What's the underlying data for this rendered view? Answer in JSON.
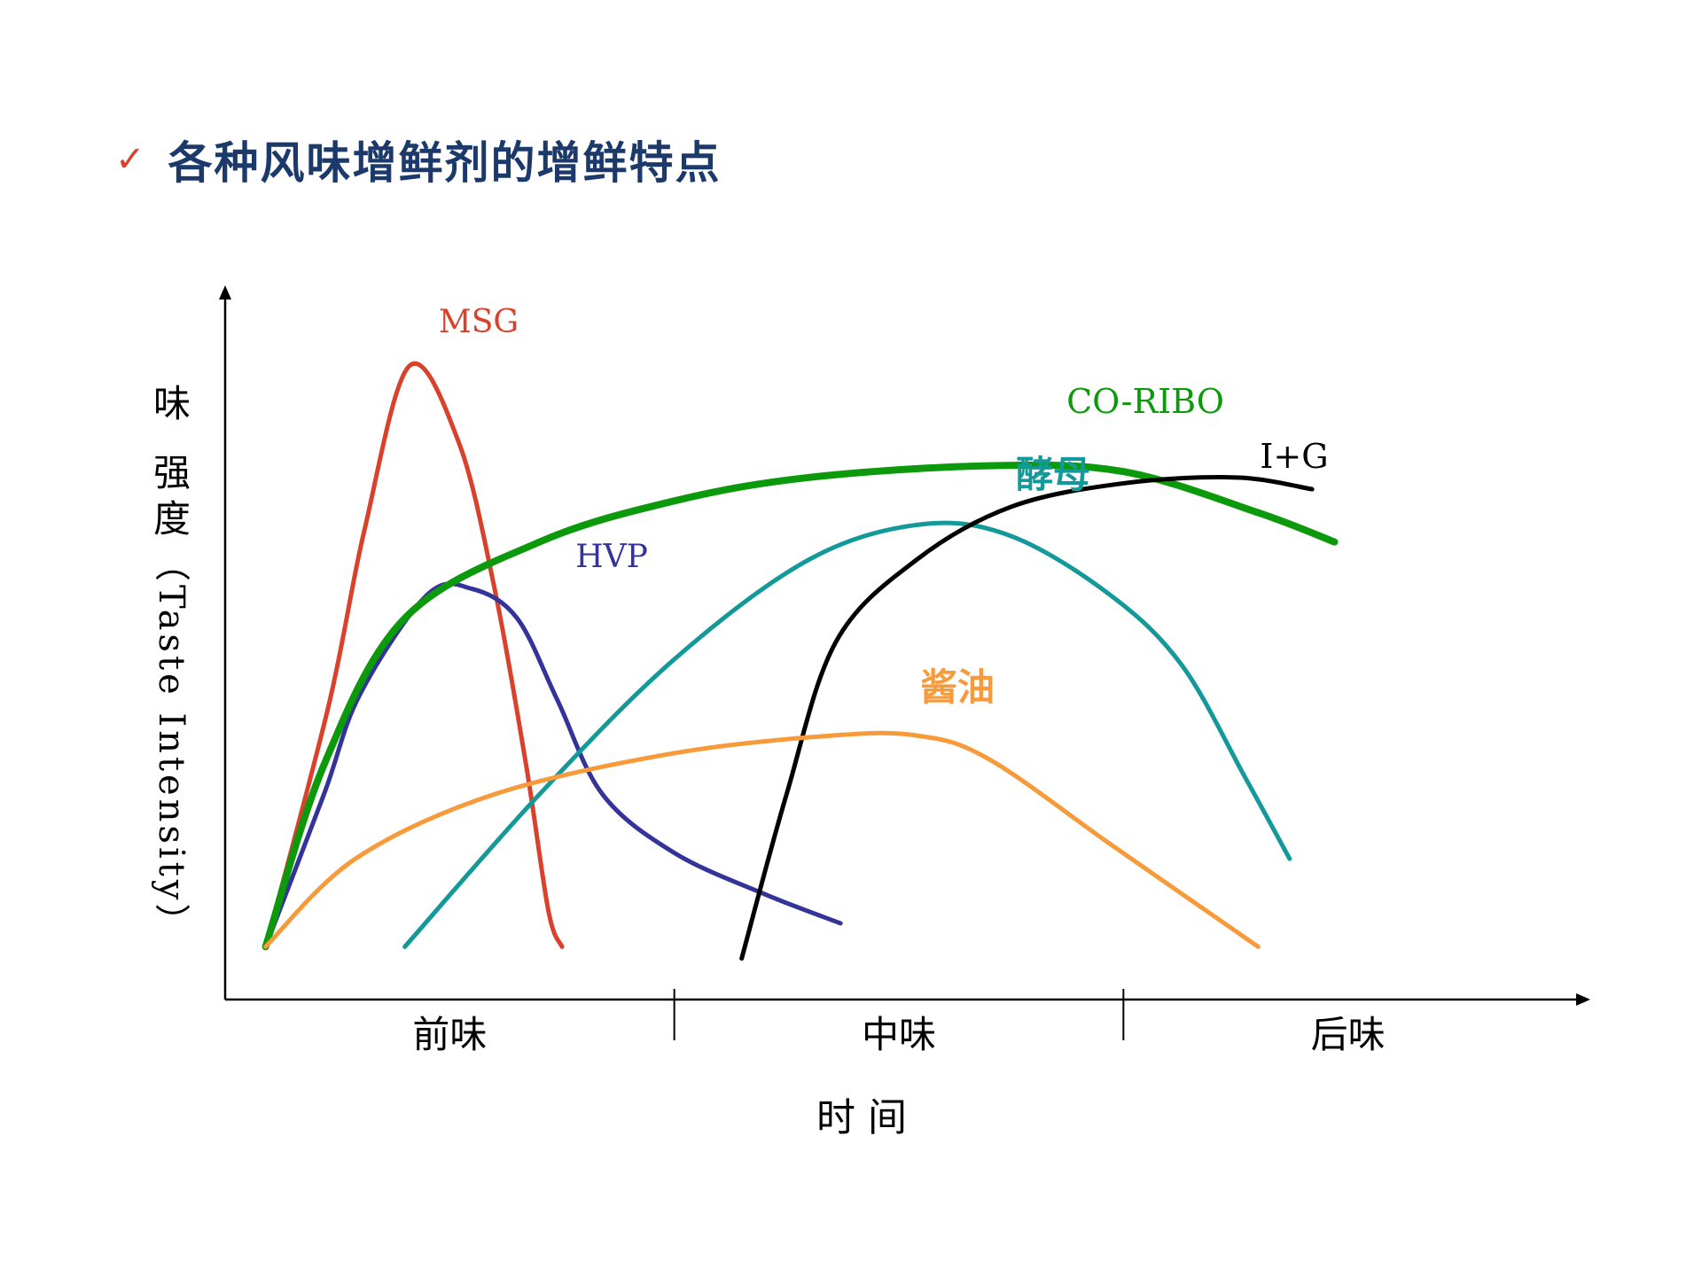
{
  "slide": {
    "bullet_icon": "check-icon",
    "title": "各种风味增鲜剂的增鲜特点"
  },
  "chart_data": {
    "type": "line",
    "title": "",
    "xlabel": "时  间",
    "ylabel": "味 强度（Taste Intensity）",
    "ylabel_parts": {
      "main": "味",
      "sub": "强度",
      "paren": "（Taste Intensity）"
    },
    "x_categories": [
      "前味",
      "中味",
      "后味"
    ],
    "xlim": [
      0,
      3
    ],
    "ylim": [
      0,
      10
    ],
    "grid": false,
    "legend": "inline-labels",
    "series": [
      {
        "name": "MSG",
        "color": "#d9412b",
        "width": 5,
        "label_color": "#d9412b",
        "points": [
          [
            0.09,
            0.9
          ],
          [
            0.23,
            5
          ],
          [
            0.31,
            8
          ],
          [
            0.41,
            10.8
          ],
          [
            0.52,
            9.5
          ],
          [
            0.6,
            7
          ],
          [
            0.67,
            4
          ],
          [
            0.72,
            1.5
          ],
          [
            0.75,
            0.9
          ]
        ]
      },
      {
        "name": "HVP",
        "color": "#333399",
        "width": 5,
        "label_color": "#333399",
        "points": [
          [
            0.09,
            0.9
          ],
          [
            0.22,
            3.5
          ],
          [
            0.3,
            5.2
          ],
          [
            0.45,
            6.9
          ],
          [
            0.55,
            7
          ],
          [
            0.65,
            6.5
          ],
          [
            0.74,
            5.1
          ],
          [
            0.84,
            3.5
          ],
          [
            1.0,
            2.5
          ],
          [
            1.2,
            1.8
          ],
          [
            1.37,
            1.3
          ]
        ]
      },
      {
        "name": "CO-RIBO",
        "color": "#0c990c",
        "width": 8,
        "label_color": "#0c990c",
        "points": [
          [
            0.09,
            0.9
          ],
          [
            0.22,
            4
          ],
          [
            0.4,
            6.5
          ],
          [
            0.7,
            7.8
          ],
          [
            1.0,
            8.5
          ],
          [
            1.3,
            8.9
          ],
          [
            1.7,
            9.1
          ],
          [
            2.0,
            9
          ],
          [
            2.3,
            8.3
          ],
          [
            2.47,
            7.8
          ]
        ]
      },
      {
        "name": "酵母",
        "color": "#14999a",
        "width": 5,
        "label_color": "#14999a",
        "points": [
          [
            0.4,
            0.9
          ],
          [
            0.7,
            3.5
          ],
          [
            1.0,
            5.8
          ],
          [
            1.3,
            7.5
          ],
          [
            1.55,
            8.1
          ],
          [
            1.75,
            7.9
          ],
          [
            1.97,
            6.9
          ],
          [
            2.13,
            5.7
          ],
          [
            2.27,
            3.8
          ],
          [
            2.37,
            2.4
          ]
        ]
      },
      {
        "name": "I+G",
        "color": "#000000",
        "width": 5,
        "label_color": "#000000",
        "points": [
          [
            1.15,
            0.7
          ],
          [
            1.25,
            3.5
          ],
          [
            1.36,
            6.1
          ],
          [
            1.54,
            7.5
          ],
          [
            1.75,
            8.4
          ],
          [
            2.0,
            8.8
          ],
          [
            2.25,
            8.9
          ],
          [
            2.42,
            8.7
          ]
        ]
      },
      {
        "name": "酱油",
        "color": "#f79a3a",
        "width": 5,
        "label_color": "#f79a3a",
        "points": [
          [
            0.09,
            0.9
          ],
          [
            0.29,
            2.4
          ],
          [
            0.6,
            3.5
          ],
          [
            1.0,
            4.2
          ],
          [
            1.35,
            4.5
          ],
          [
            1.54,
            4.5
          ],
          [
            1.7,
            4.1
          ],
          [
            1.98,
            2.6
          ],
          [
            2.3,
            0.9
          ]
        ]
      }
    ]
  }
}
